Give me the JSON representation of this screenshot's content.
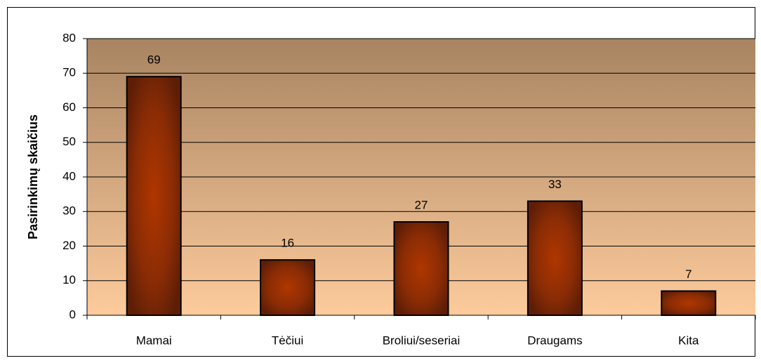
{
  "chart_data": {
    "type": "bar",
    "y_label": "Pasirinkimų skaičius",
    "categories": [
      "Mamai",
      "Tėčiui",
      "Broliui/seseriai",
      "Draugams",
      "Kita"
    ],
    "values": [
      69,
      16,
      27,
      33,
      7
    ],
    "color": "#a53300",
    "ylim": [
      0,
      80
    ],
    "yticks": [
      0,
      10,
      20,
      30,
      40,
      50,
      60,
      70,
      80
    ],
    "grid": true
  }
}
